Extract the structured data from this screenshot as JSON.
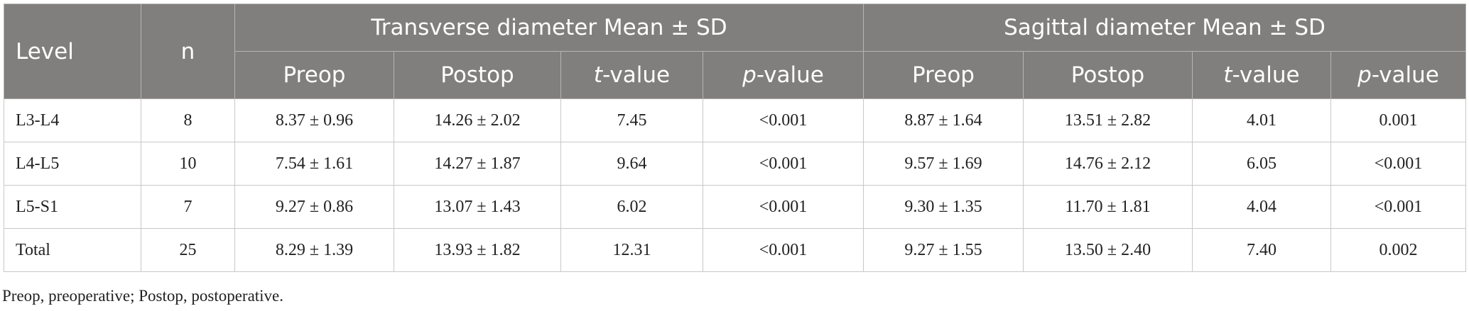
{
  "table": {
    "header": {
      "level": "Level",
      "n": "n",
      "groups": [
        "Transverse diameter Mean ± SD",
        "Sagittal diameter Mean ± SD"
      ],
      "subheaders": [
        "Preop",
        "Postop",
        "t-value",
        "p-value",
        "Preop",
        "Postop",
        "t-value",
        "p-value"
      ]
    },
    "rows": [
      [
        "L3-L4",
        "8",
        "8.37 ± 0.96",
        "14.26 ± 2.02",
        "7.45",
        "<0.001",
        "8.87 ± 1.64",
        "13.51 ± 2.82",
        "4.01",
        "0.001"
      ],
      [
        "L4-L5",
        "10",
        "7.54 ± 1.61",
        "14.27 ± 1.87",
        "9.64",
        "<0.001",
        "9.57 ± 1.69",
        "14.76 ± 2.12",
        "6.05",
        "<0.001"
      ],
      [
        "L5-S1",
        "7",
        "9.27 ± 0.86",
        "13.07 ± 1.43",
        "6.02",
        "<0.001",
        "9.30 ± 1.35",
        "11.70 ± 1.81",
        "4.04",
        "<0.001"
      ],
      [
        "Total",
        "25",
        "8.29 ± 1.39",
        "13.93 ± 1.82",
        "12.31",
        "<0.001",
        "9.27 ± 1.55",
        "13.50 ± 2.40",
        "7.40",
        "0.002"
      ]
    ],
    "footnote": "Preop, preoperative; Postop, postoperative."
  }
}
